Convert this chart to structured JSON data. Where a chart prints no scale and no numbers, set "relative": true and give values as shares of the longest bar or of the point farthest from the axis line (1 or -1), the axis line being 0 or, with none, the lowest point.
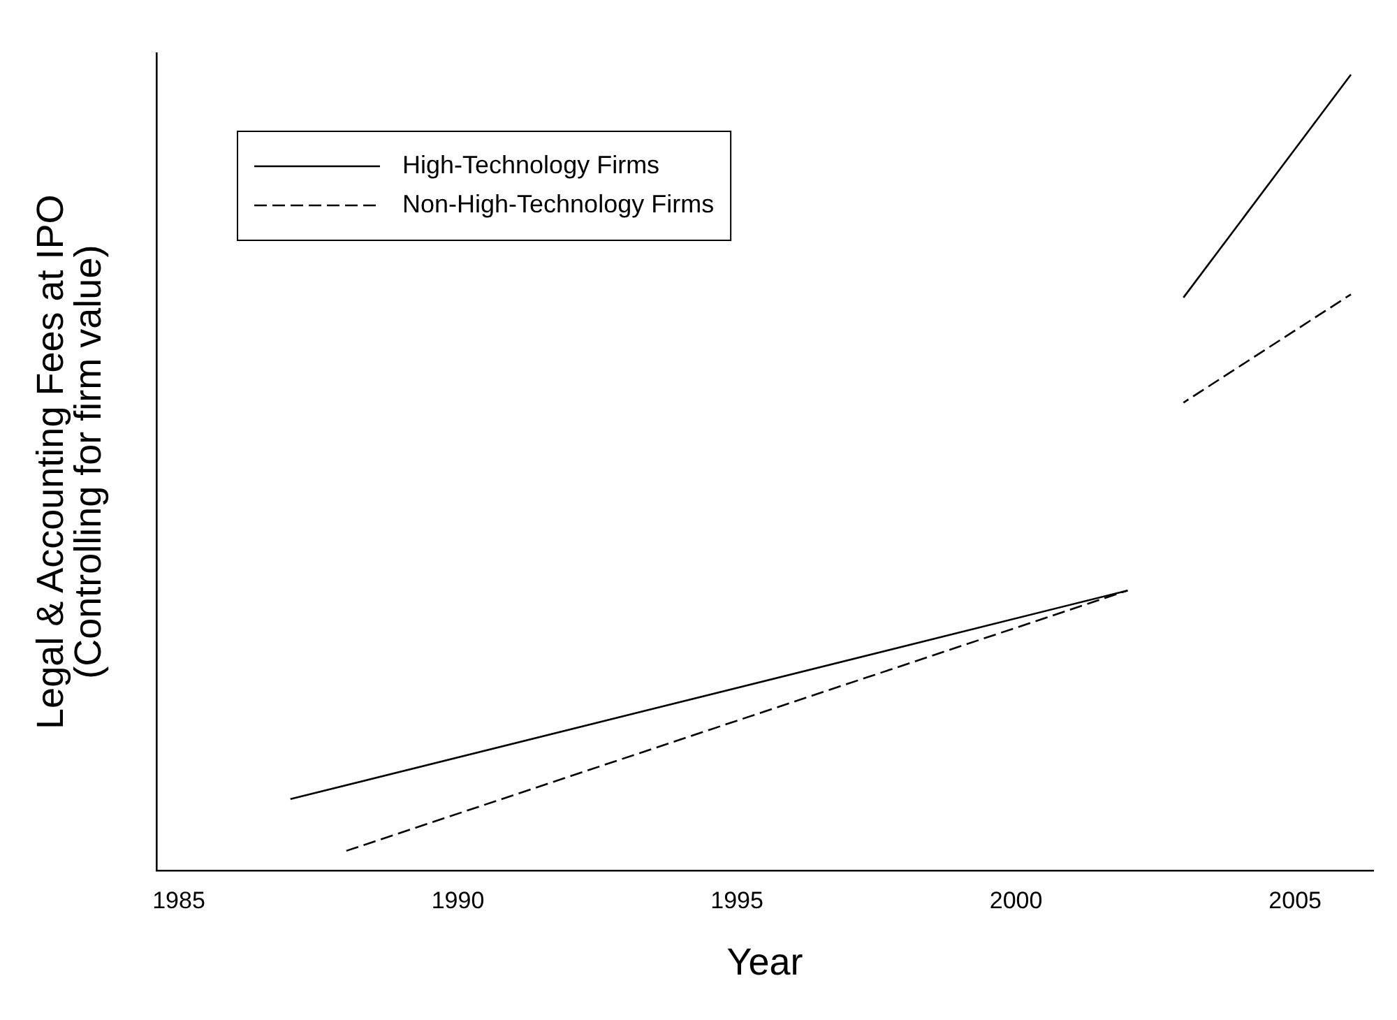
{
  "chart_data": {
    "type": "line",
    "relative": true,
    "xlabel": "Year",
    "ylabel": "Legal & Accounting Fees at IPO\n(Controlling for firm value)",
    "xlim": [
      1984.6,
      2006.4
    ],
    "xticks": [
      1985,
      1990,
      1995,
      2000,
      2005
    ],
    "grid": false,
    "legend": "top left",
    "marker": "none",
    "series": [
      {
        "name": "High-Technology Firms",
        "color": "#000000",
        "line_style": "solid",
        "x": [
          1987,
          2002
        ],
        "values": [
          0.09,
          0.352
        ]
      },
      {
        "name": "Non-High-Technology Firms",
        "color": "#000000",
        "line_style": "dashed",
        "x": [
          1988,
          2002
        ],
        "values": [
          0.025,
          0.352
        ]
      },
      {
        "color": "#000000",
        "line_style": "solid",
        "x": [
          2003,
          2006
        ],
        "values": [
          0.72,
          1
        ]
      },
      {
        "color": "#000000",
        "line_style": "dashed",
        "x": [
          2003,
          2006
        ],
        "values": [
          0.588,
          0.724
        ]
      }
    ]
  }
}
